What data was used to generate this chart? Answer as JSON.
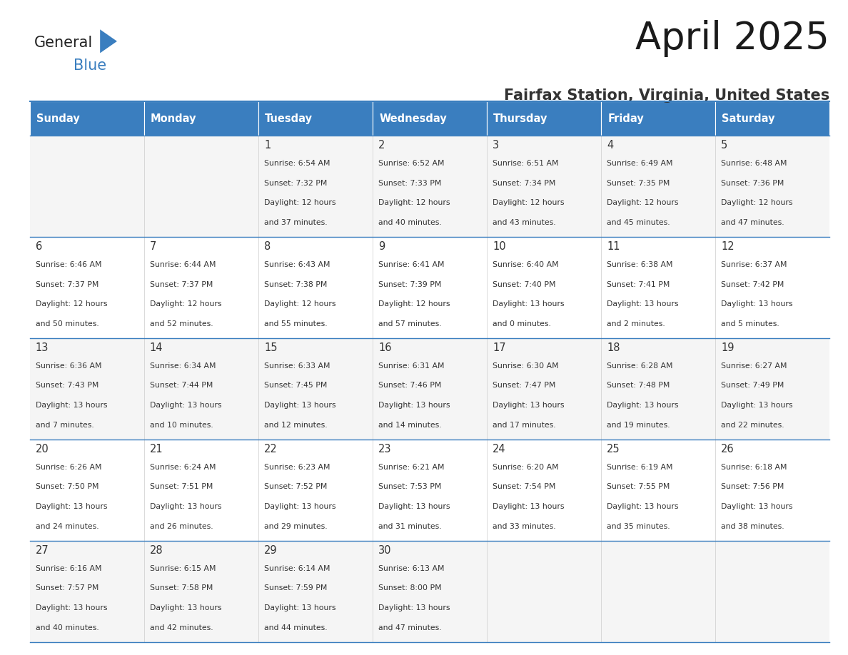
{
  "title": "April 2025",
  "subtitle": "Fairfax Station, Virginia, United States",
  "header_bg": "#3a7ebf",
  "header_text_color": "#ffffff",
  "border_color": "#3a7ebf",
  "text_color": "#333333",
  "day_number_color": "#333333",
  "logo_color1": "#222222",
  "logo_color2": "#3a7ebf",
  "day_names": [
    "Sunday",
    "Monday",
    "Tuesday",
    "Wednesday",
    "Thursday",
    "Friday",
    "Saturday"
  ],
  "calendar": [
    [
      {
        "day": "",
        "sunrise": "",
        "sunset": "",
        "daylight1": "",
        "daylight2": ""
      },
      {
        "day": "",
        "sunrise": "",
        "sunset": "",
        "daylight1": "",
        "daylight2": ""
      },
      {
        "day": "1",
        "sunrise": "6:54 AM",
        "sunset": "7:32 PM",
        "daylight1": "12 hours",
        "daylight2": "and 37 minutes."
      },
      {
        "day": "2",
        "sunrise": "6:52 AM",
        "sunset": "7:33 PM",
        "daylight1": "12 hours",
        "daylight2": "and 40 minutes."
      },
      {
        "day": "3",
        "sunrise": "6:51 AM",
        "sunset": "7:34 PM",
        "daylight1": "12 hours",
        "daylight2": "and 43 minutes."
      },
      {
        "day": "4",
        "sunrise": "6:49 AM",
        "sunset": "7:35 PM",
        "daylight1": "12 hours",
        "daylight2": "and 45 minutes."
      },
      {
        "day": "5",
        "sunrise": "6:48 AM",
        "sunset": "7:36 PM",
        "daylight1": "12 hours",
        "daylight2": "and 47 minutes."
      }
    ],
    [
      {
        "day": "6",
        "sunrise": "6:46 AM",
        "sunset": "7:37 PM",
        "daylight1": "12 hours",
        "daylight2": "and 50 minutes."
      },
      {
        "day": "7",
        "sunrise": "6:44 AM",
        "sunset": "7:37 PM",
        "daylight1": "12 hours",
        "daylight2": "and 52 minutes."
      },
      {
        "day": "8",
        "sunrise": "6:43 AM",
        "sunset": "7:38 PM",
        "daylight1": "12 hours",
        "daylight2": "and 55 minutes."
      },
      {
        "day": "9",
        "sunrise": "6:41 AM",
        "sunset": "7:39 PM",
        "daylight1": "12 hours",
        "daylight2": "and 57 minutes."
      },
      {
        "day": "10",
        "sunrise": "6:40 AM",
        "sunset": "7:40 PM",
        "daylight1": "13 hours",
        "daylight2": "and 0 minutes."
      },
      {
        "day": "11",
        "sunrise": "6:38 AM",
        "sunset": "7:41 PM",
        "daylight1": "13 hours",
        "daylight2": "and 2 minutes."
      },
      {
        "day": "12",
        "sunrise": "6:37 AM",
        "sunset": "7:42 PM",
        "daylight1": "13 hours",
        "daylight2": "and 5 minutes."
      }
    ],
    [
      {
        "day": "13",
        "sunrise": "6:36 AM",
        "sunset": "7:43 PM",
        "daylight1": "13 hours",
        "daylight2": "and 7 minutes."
      },
      {
        "day": "14",
        "sunrise": "6:34 AM",
        "sunset": "7:44 PM",
        "daylight1": "13 hours",
        "daylight2": "and 10 minutes."
      },
      {
        "day": "15",
        "sunrise": "6:33 AM",
        "sunset": "7:45 PM",
        "daylight1": "13 hours",
        "daylight2": "and 12 minutes."
      },
      {
        "day": "16",
        "sunrise": "6:31 AM",
        "sunset": "7:46 PM",
        "daylight1": "13 hours",
        "daylight2": "and 14 minutes."
      },
      {
        "day": "17",
        "sunrise": "6:30 AM",
        "sunset": "7:47 PM",
        "daylight1": "13 hours",
        "daylight2": "and 17 minutes."
      },
      {
        "day": "18",
        "sunrise": "6:28 AM",
        "sunset": "7:48 PM",
        "daylight1": "13 hours",
        "daylight2": "and 19 minutes."
      },
      {
        "day": "19",
        "sunrise": "6:27 AM",
        "sunset": "7:49 PM",
        "daylight1": "13 hours",
        "daylight2": "and 22 minutes."
      }
    ],
    [
      {
        "day": "20",
        "sunrise": "6:26 AM",
        "sunset": "7:50 PM",
        "daylight1": "13 hours",
        "daylight2": "and 24 minutes."
      },
      {
        "day": "21",
        "sunrise": "6:24 AM",
        "sunset": "7:51 PM",
        "daylight1": "13 hours",
        "daylight2": "and 26 minutes."
      },
      {
        "day": "22",
        "sunrise": "6:23 AM",
        "sunset": "7:52 PM",
        "daylight1": "13 hours",
        "daylight2": "and 29 minutes."
      },
      {
        "day": "23",
        "sunrise": "6:21 AM",
        "sunset": "7:53 PM",
        "daylight1": "13 hours",
        "daylight2": "and 31 minutes."
      },
      {
        "day": "24",
        "sunrise": "6:20 AM",
        "sunset": "7:54 PM",
        "daylight1": "13 hours",
        "daylight2": "and 33 minutes."
      },
      {
        "day": "25",
        "sunrise": "6:19 AM",
        "sunset": "7:55 PM",
        "daylight1": "13 hours",
        "daylight2": "and 35 minutes."
      },
      {
        "day": "26",
        "sunrise": "6:18 AM",
        "sunset": "7:56 PM",
        "daylight1": "13 hours",
        "daylight2": "and 38 minutes."
      }
    ],
    [
      {
        "day": "27",
        "sunrise": "6:16 AM",
        "sunset": "7:57 PM",
        "daylight1": "13 hours",
        "daylight2": "and 40 minutes."
      },
      {
        "day": "28",
        "sunrise": "6:15 AM",
        "sunset": "7:58 PM",
        "daylight1": "13 hours",
        "daylight2": "and 42 minutes."
      },
      {
        "day": "29",
        "sunrise": "6:14 AM",
        "sunset": "7:59 PM",
        "daylight1": "13 hours",
        "daylight2": "and 44 minutes."
      },
      {
        "day": "30",
        "sunrise": "6:13 AM",
        "sunset": "8:00 PM",
        "daylight1": "13 hours",
        "daylight2": "and 47 minutes."
      },
      {
        "day": "",
        "sunrise": "",
        "sunset": "",
        "daylight1": "",
        "daylight2": ""
      },
      {
        "day": "",
        "sunrise": "",
        "sunset": "",
        "daylight1": "",
        "daylight2": ""
      },
      {
        "day": "",
        "sunrise": "",
        "sunset": "",
        "daylight1": "",
        "daylight2": ""
      }
    ]
  ]
}
